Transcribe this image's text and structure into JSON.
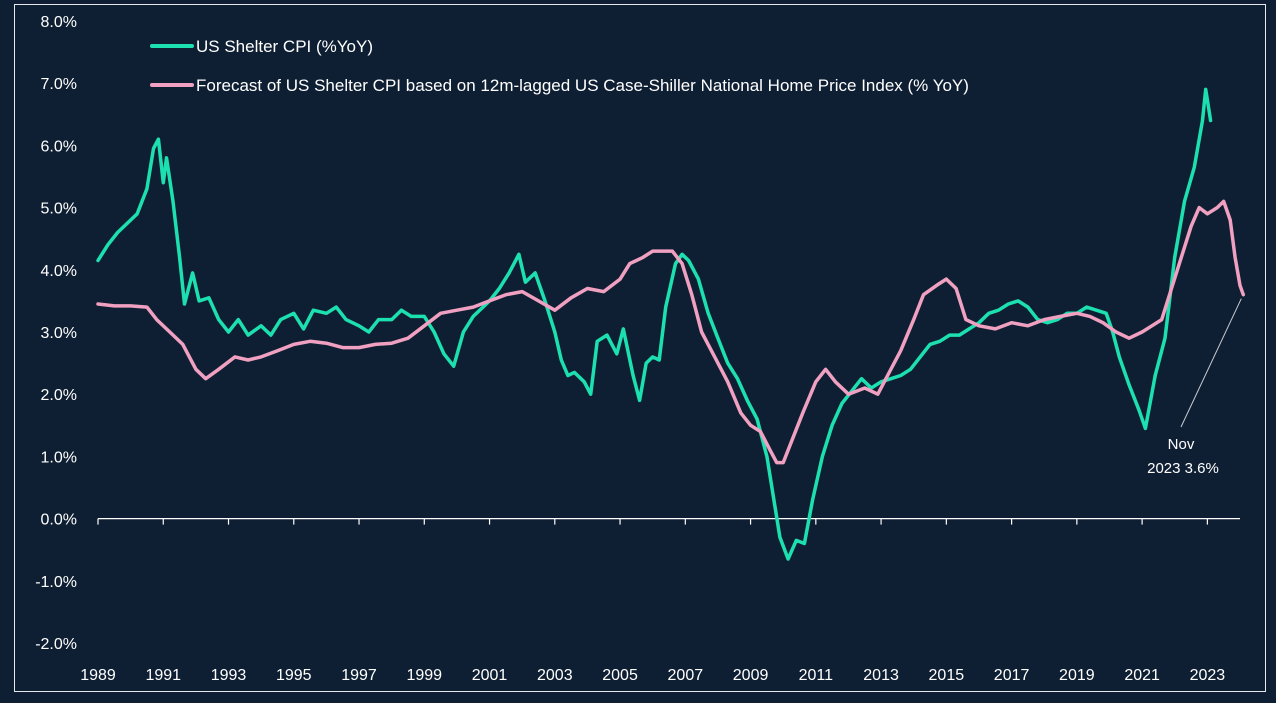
{
  "chart_data": {
    "type": "line",
    "title": "",
    "xlabel": "",
    "ylabel": "",
    "ylim": [
      -2.0,
      8.0
    ],
    "xlim": [
      1989,
      2024
    ],
    "grid": false,
    "legend_position": "top-left",
    "y_ticks": [
      8.0,
      7.0,
      6.0,
      5.0,
      4.0,
      3.0,
      2.0,
      1.0,
      0.0,
      -1.0,
      -2.0
    ],
    "y_tick_labels": [
      "8.0%",
      "7.0%",
      "6.0%",
      "5.0%",
      "4.0%",
      "3.0%",
      "2.0%",
      "1.0%",
      "0.0%",
      "-1.0%",
      "-2.0%"
    ],
    "x_ticks": [
      1989,
      1991,
      1993,
      1995,
      1997,
      1999,
      2001,
      2003,
      2005,
      2007,
      2009,
      2011,
      2013,
      2015,
      2017,
      2019,
      2021,
      2023
    ],
    "x_tick_labels": [
      "1989",
      "1991",
      "1993",
      "1995",
      "1997",
      "1999",
      "2001",
      "2003",
      "2005",
      "2007",
      "2009",
      "2011",
      "2013",
      "2015",
      "2017",
      "2019",
      "2021",
      "2023"
    ],
    "series": [
      {
        "name": "US Shelter CPI (%YoY)",
        "color": "#1de0b0",
        "points": [
          [
            1989.0,
            4.15
          ],
          [
            1989.3,
            4.4
          ],
          [
            1989.6,
            4.6
          ],
          [
            1989.9,
            4.75
          ],
          [
            1990.2,
            4.9
          ],
          [
            1990.5,
            5.3
          ],
          [
            1990.7,
            5.95
          ],
          [
            1990.85,
            6.1
          ],
          [
            1991.0,
            5.4
          ],
          [
            1991.1,
            5.8
          ],
          [
            1991.3,
            5.1
          ],
          [
            1991.5,
            4.2
          ],
          [
            1991.65,
            3.45
          ],
          [
            1991.9,
            3.95
          ],
          [
            1992.1,
            3.5
          ],
          [
            1992.4,
            3.55
          ],
          [
            1992.7,
            3.2
          ],
          [
            1993.0,
            3.0
          ],
          [
            1993.3,
            3.2
          ],
          [
            1993.6,
            2.95
          ],
          [
            1994.0,
            3.1
          ],
          [
            1994.3,
            2.95
          ],
          [
            1994.6,
            3.2
          ],
          [
            1995.0,
            3.3
          ],
          [
            1995.3,
            3.05
          ],
          [
            1995.6,
            3.35
          ],
          [
            1996.0,
            3.3
          ],
          [
            1996.3,
            3.4
          ],
          [
            1996.6,
            3.2
          ],
          [
            1997.0,
            3.1
          ],
          [
            1997.3,
            3.0
          ],
          [
            1997.6,
            3.2
          ],
          [
            1998.0,
            3.2
          ],
          [
            1998.3,
            3.35
          ],
          [
            1998.6,
            3.25
          ],
          [
            1999.0,
            3.25
          ],
          [
            1999.3,
            3.0
          ],
          [
            1999.6,
            2.65
          ],
          [
            1999.9,
            2.45
          ],
          [
            2000.2,
            3.0
          ],
          [
            2000.5,
            3.25
          ],
          [
            2000.8,
            3.4
          ],
          [
            2001.0,
            3.5
          ],
          [
            2001.3,
            3.7
          ],
          [
            2001.6,
            3.95
          ],
          [
            2001.9,
            4.25
          ],
          [
            2002.1,
            3.8
          ],
          [
            2002.4,
            3.95
          ],
          [
            2002.7,
            3.5
          ],
          [
            2003.0,
            3.0
          ],
          [
            2003.2,
            2.55
          ],
          [
            2003.4,
            2.3
          ],
          [
            2003.6,
            2.35
          ],
          [
            2003.9,
            2.2
          ],
          [
            2004.1,
            2.0
          ],
          [
            2004.3,
            2.85
          ],
          [
            2004.6,
            2.95
          ],
          [
            2004.9,
            2.65
          ],
          [
            2005.1,
            3.05
          ],
          [
            2005.4,
            2.3
          ],
          [
            2005.6,
            1.9
          ],
          [
            2005.8,
            2.5
          ],
          [
            2006.0,
            2.6
          ],
          [
            2006.2,
            2.55
          ],
          [
            2006.4,
            3.4
          ],
          [
            2006.7,
            4.1
          ],
          [
            2006.9,
            4.25
          ],
          [
            2007.1,
            4.15
          ],
          [
            2007.4,
            3.85
          ],
          [
            2007.7,
            3.3
          ],
          [
            2008.0,
            2.9
          ],
          [
            2008.3,
            2.5
          ],
          [
            2008.6,
            2.25
          ],
          [
            2008.9,
            1.9
          ],
          [
            2009.2,
            1.6
          ],
          [
            2009.5,
            1.0
          ],
          [
            2009.7,
            0.35
          ],
          [
            2009.9,
            -0.3
          ],
          [
            2010.15,
            -0.65
          ],
          [
            2010.4,
            -0.35
          ],
          [
            2010.65,
            -0.4
          ],
          [
            2010.9,
            0.3
          ],
          [
            2011.2,
            1.0
          ],
          [
            2011.5,
            1.5
          ],
          [
            2011.8,
            1.85
          ],
          [
            2012.1,
            2.05
          ],
          [
            2012.4,
            2.25
          ],
          [
            2012.7,
            2.1
          ],
          [
            2013.0,
            2.2
          ],
          [
            2013.3,
            2.25
          ],
          [
            2013.6,
            2.3
          ],
          [
            2013.9,
            2.4
          ],
          [
            2014.2,
            2.6
          ],
          [
            2014.5,
            2.8
          ],
          [
            2014.8,
            2.85
          ],
          [
            2015.1,
            2.95
          ],
          [
            2015.4,
            2.95
          ],
          [
            2015.7,
            3.05
          ],
          [
            2016.0,
            3.15
          ],
          [
            2016.3,
            3.3
          ],
          [
            2016.6,
            3.35
          ],
          [
            2016.9,
            3.45
          ],
          [
            2017.2,
            3.5
          ],
          [
            2017.5,
            3.4
          ],
          [
            2017.8,
            3.2
          ],
          [
            2018.1,
            3.15
          ],
          [
            2018.4,
            3.2
          ],
          [
            2018.7,
            3.3
          ],
          [
            2019.0,
            3.3
          ],
          [
            2019.3,
            3.4
          ],
          [
            2019.6,
            3.35
          ],
          [
            2019.9,
            3.3
          ],
          [
            2020.1,
            3.0
          ],
          [
            2020.3,
            2.6
          ],
          [
            2020.6,
            2.15
          ],
          [
            2020.9,
            1.75
          ],
          [
            2021.1,
            1.45
          ],
          [
            2021.4,
            2.3
          ],
          [
            2021.7,
            2.9
          ],
          [
            2022.0,
            4.2
          ],
          [
            2022.3,
            5.1
          ],
          [
            2022.6,
            5.65
          ],
          [
            2022.85,
            6.4
          ],
          [
            2022.95,
            6.9
          ],
          [
            2023.1,
            6.4
          ]
        ]
      },
      {
        "name": "Forecast of US Shelter CPI based on 12m-lagged US Case-Shiller National Home Price Index (% YoY)",
        "color": "#f0a0c0",
        "points": [
          [
            1989.0,
            3.45
          ],
          [
            1989.5,
            3.42
          ],
          [
            1990.0,
            3.42
          ],
          [
            1990.5,
            3.4
          ],
          [
            1990.8,
            3.2
          ],
          [
            1991.2,
            3.0
          ],
          [
            1991.6,
            2.8
          ],
          [
            1992.0,
            2.4
          ],
          [
            1992.3,
            2.25
          ],
          [
            1992.7,
            2.4
          ],
          [
            1993.2,
            2.6
          ],
          [
            1993.6,
            2.55
          ],
          [
            1994.0,
            2.6
          ],
          [
            1994.5,
            2.7
          ],
          [
            1995.0,
            2.8
          ],
          [
            1995.5,
            2.85
          ],
          [
            1996.0,
            2.82
          ],
          [
            1996.5,
            2.75
          ],
          [
            1997.0,
            2.75
          ],
          [
            1997.5,
            2.8
          ],
          [
            1998.0,
            2.82
          ],
          [
            1998.5,
            2.9
          ],
          [
            1999.0,
            3.1
          ],
          [
            1999.5,
            3.3
          ],
          [
            2000.0,
            3.35
          ],
          [
            2000.5,
            3.4
          ],
          [
            2001.0,
            3.5
          ],
          [
            2001.5,
            3.6
          ],
          [
            2002.0,
            3.65
          ],
          [
            2002.5,
            3.5
          ],
          [
            2003.0,
            3.35
          ],
          [
            2003.5,
            3.55
          ],
          [
            2004.0,
            3.7
          ],
          [
            2004.5,
            3.65
          ],
          [
            2005.0,
            3.85
          ],
          [
            2005.3,
            4.1
          ],
          [
            2005.7,
            4.2
          ],
          [
            2006.0,
            4.3
          ],
          [
            2006.3,
            4.3
          ],
          [
            2006.6,
            4.3
          ],
          [
            2006.9,
            4.1
          ],
          [
            2007.2,
            3.6
          ],
          [
            2007.5,
            3.0
          ],
          [
            2007.9,
            2.6
          ],
          [
            2008.3,
            2.2
          ],
          [
            2008.7,
            1.7
          ],
          [
            2009.0,
            1.5
          ],
          [
            2009.3,
            1.4
          ],
          [
            2009.6,
            1.1
          ],
          [
            2009.8,
            0.9
          ],
          [
            2010.0,
            0.9
          ],
          [
            2010.3,
            1.3
          ],
          [
            2010.6,
            1.7
          ],
          [
            2011.0,
            2.2
          ],
          [
            2011.3,
            2.4
          ],
          [
            2011.6,
            2.2
          ],
          [
            2012.0,
            2.0
          ],
          [
            2012.5,
            2.1
          ],
          [
            2012.9,
            2.0
          ],
          [
            2013.2,
            2.3
          ],
          [
            2013.6,
            2.7
          ],
          [
            2014.0,
            3.2
          ],
          [
            2014.3,
            3.6
          ],
          [
            2014.7,
            3.75
          ],
          [
            2015.0,
            3.85
          ],
          [
            2015.3,
            3.7
          ],
          [
            2015.6,
            3.2
          ],
          [
            2016.0,
            3.1
          ],
          [
            2016.5,
            3.05
          ],
          [
            2017.0,
            3.15
          ],
          [
            2017.5,
            3.1
          ],
          [
            2018.0,
            3.2
          ],
          [
            2018.5,
            3.25
          ],
          [
            2019.0,
            3.3
          ],
          [
            2019.4,
            3.25
          ],
          [
            2019.8,
            3.15
          ],
          [
            2020.2,
            3.0
          ],
          [
            2020.6,
            2.9
          ],
          [
            2021.0,
            3.0
          ],
          [
            2021.3,
            3.1
          ],
          [
            2021.6,
            3.2
          ],
          [
            2021.9,
            3.7
          ],
          [
            2022.2,
            4.2
          ],
          [
            2022.5,
            4.7
          ],
          [
            2022.75,
            5.0
          ],
          [
            2023.0,
            4.9
          ],
          [
            2023.3,
            5.0
          ],
          [
            2023.5,
            5.1
          ],
          [
            2023.7,
            4.8
          ],
          [
            2023.85,
            4.2
          ],
          [
            2024.0,
            3.75
          ],
          [
            2024.1,
            3.6
          ]
        ]
      }
    ],
    "annotations": [
      {
        "text_line1": "Nov",
        "text_line2": "2023 3.6%",
        "points_to": [
          2024.1,
          3.6
        ]
      }
    ]
  }
}
